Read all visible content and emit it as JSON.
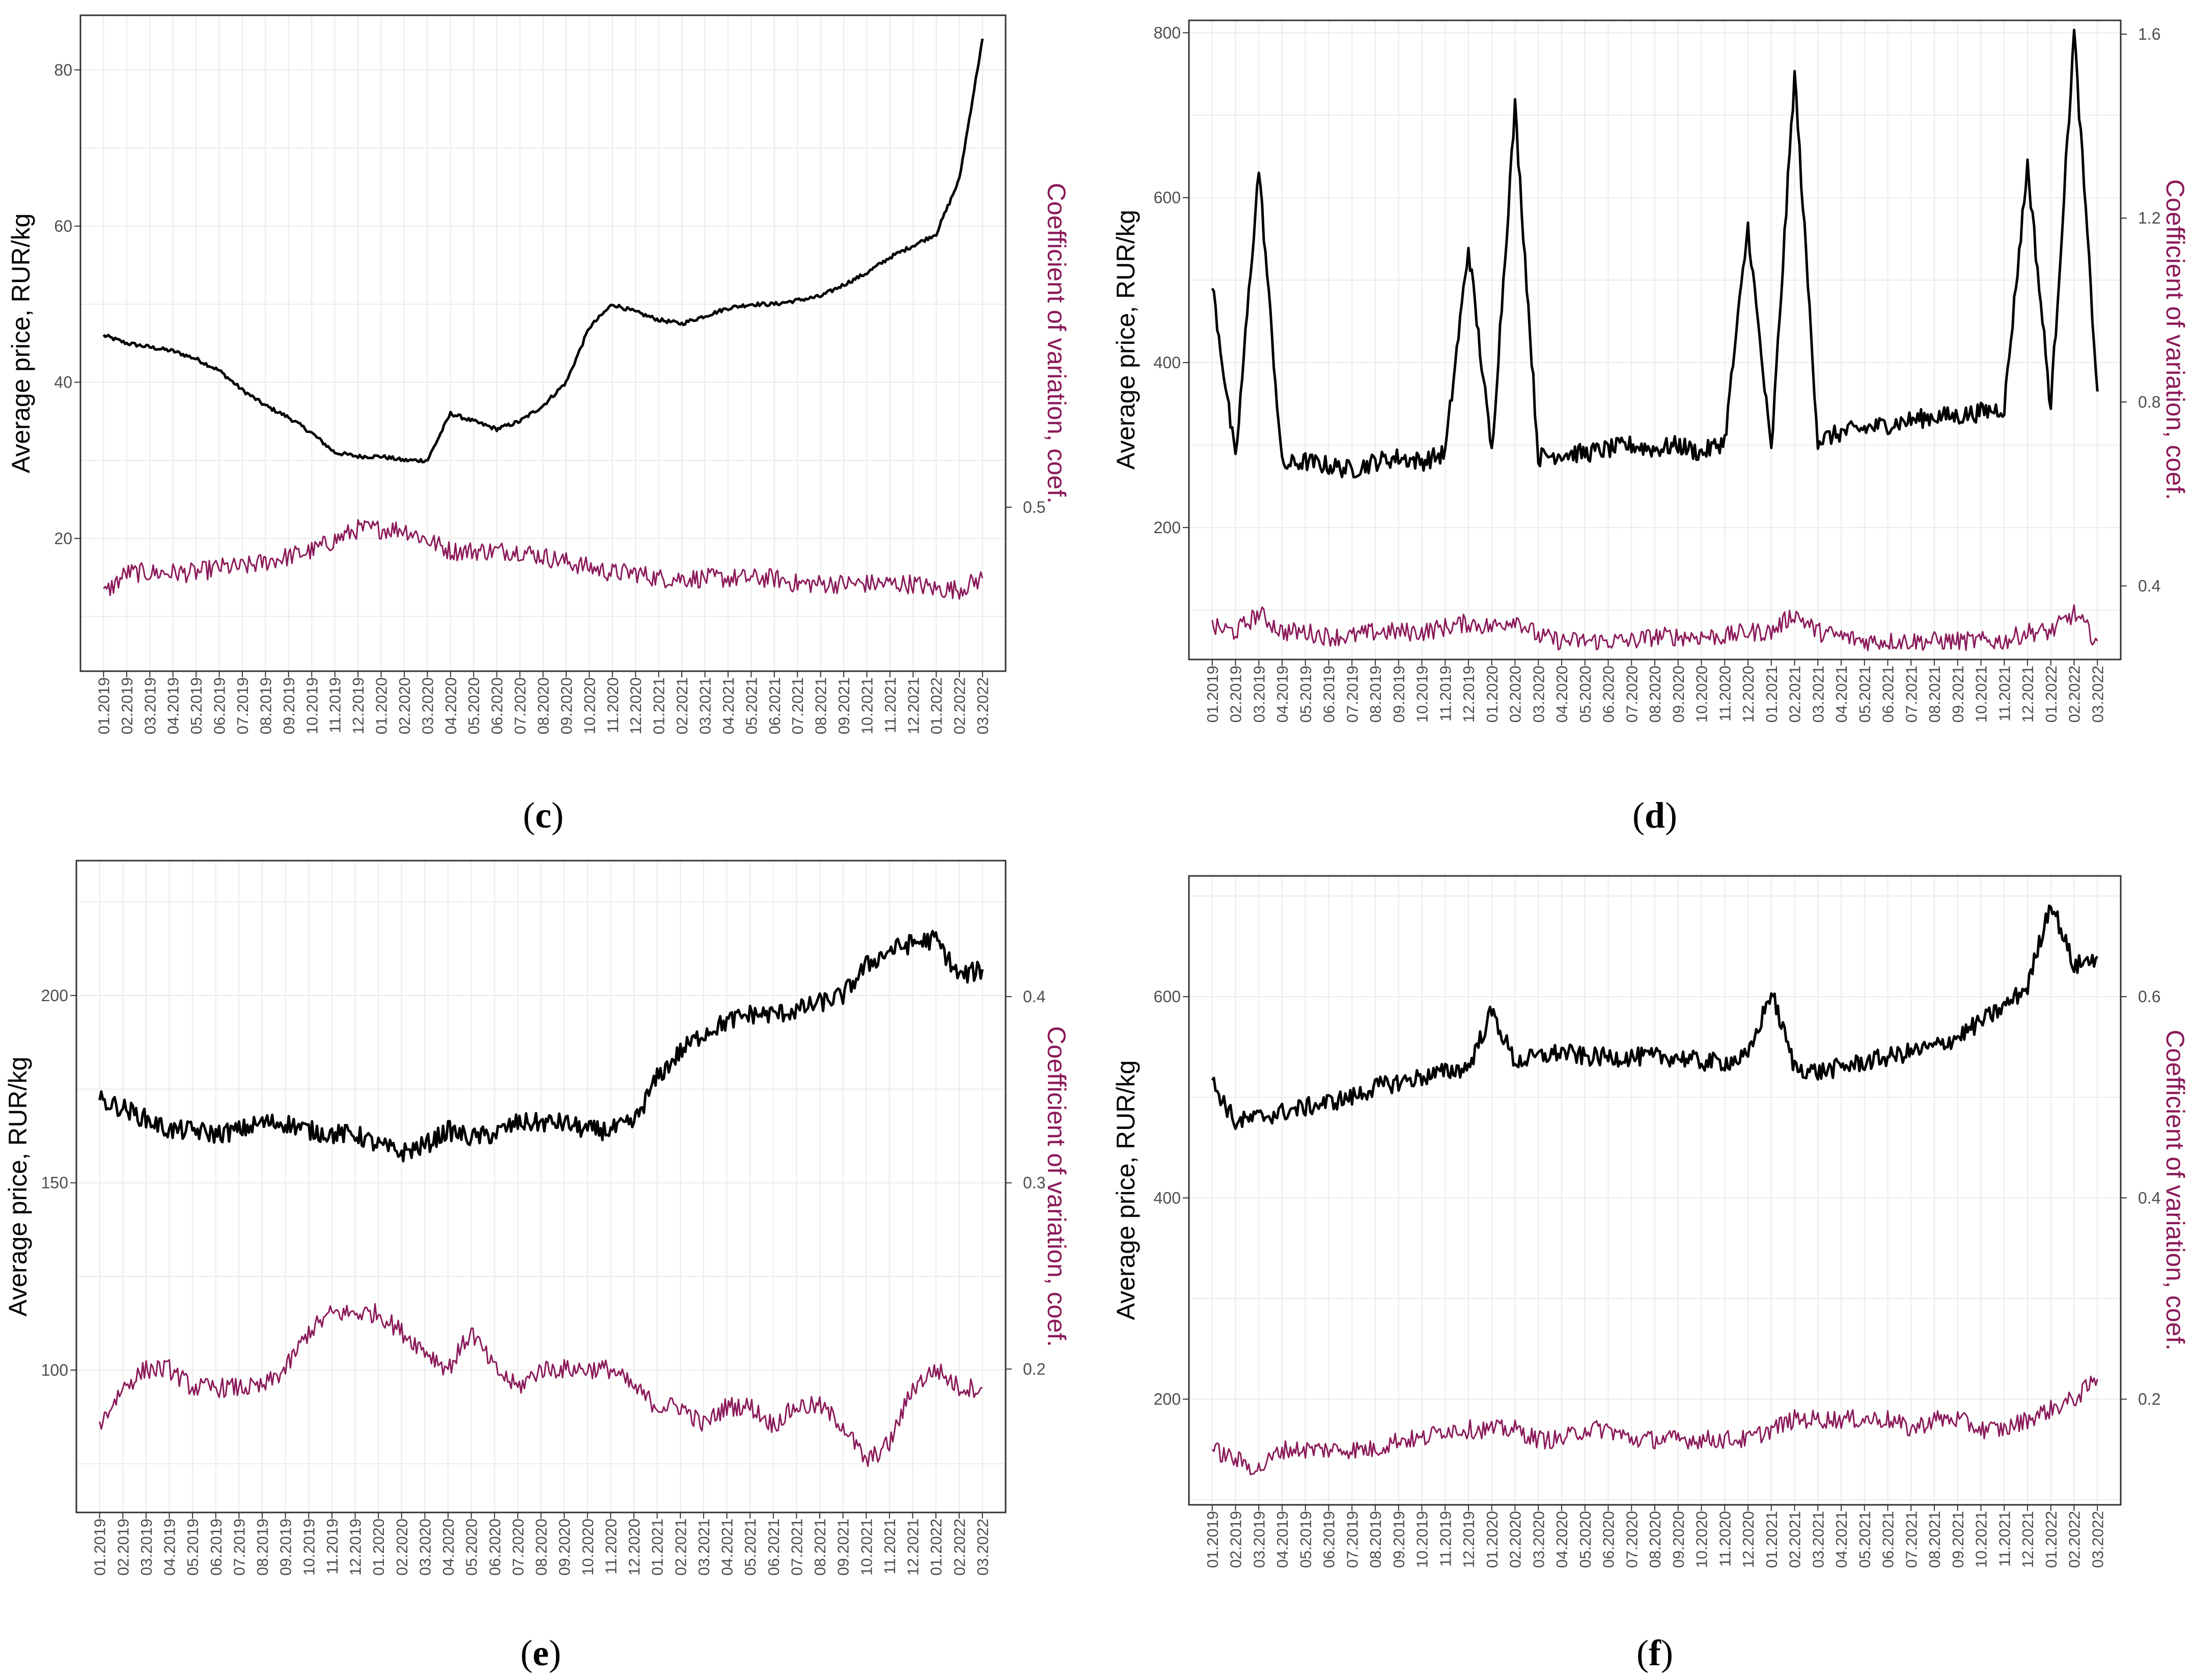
{
  "colors": {
    "price": "#000000",
    "cv": "#8b1a5a",
    "grid": "#ebebeb",
    "border": "#333333"
  },
  "chart_data": [
    {
      "type": "line",
      "panel": "c",
      "caption_open": "(",
      "caption_letter": "c",
      "caption_close": ")",
      "ylabel": "Average price, RUR/kg",
      "y2label": "Coefficient of variation, coef.",
      "ylim": [
        3,
        87
      ],
      "yticks": [
        20,
        40,
        60,
        80
      ],
      "y2lim": [
        0.2,
        1.4
      ],
      "y2ticks": [
        0.5
      ],
      "categories": [
        "01.2019",
        "02.2019",
        "03.2019",
        "04.2019",
        "05.2019",
        "06.2019",
        "07.2019",
        "08.2019",
        "09.2019",
        "10.2019",
        "11.2019",
        "12.2019",
        "01.2020",
        "02.2020",
        "03.2020",
        "04.2020",
        "05.2020",
        "06.2020",
        "07.2020",
        "08.2020",
        "09.2020",
        "10.2020",
        "11.2020",
        "12.2020",
        "01.2021",
        "02.2021",
        "03.2021",
        "04.2021",
        "05.2021",
        "06.2021",
        "07.2021",
        "08.2021",
        "09.2021",
        "10.2021",
        "11.2021",
        "12.2021",
        "01.2022",
        "02.2022",
        "03.2022"
      ],
      "series": [
        {
          "name": "Average price",
          "axis": "left",
          "values": [
            46,
            45,
            44.5,
            44,
            43,
            41.5,
            39,
            37,
            35.5,
            33.5,
            31,
            30.5,
            30.5,
            30,
            30,
            36,
            35,
            34,
            35,
            37,
            40,
            47,
            50,
            49,
            48,
            47.5,
            48.5,
            49.5,
            50,
            50,
            50.5,
            51,
            52.5,
            54,
            56,
            57.5,
            59,
            66,
            84
          ]
        },
        {
          "name": "Coefficient of variation",
          "axis": "right",
          "values": [
            0.34,
            0.38,
            0.38,
            0.38,
            0.38,
            0.39,
            0.39,
            0.4,
            0.41,
            0.42,
            0.44,
            0.46,
            0.46,
            0.46,
            0.44,
            0.42,
            0.42,
            0.42,
            0.42,
            0.41,
            0.4,
            0.39,
            0.38,
            0.38,
            0.37,
            0.37,
            0.37,
            0.37,
            0.37,
            0.37,
            0.36,
            0.36,
            0.36,
            0.36,
            0.36,
            0.36,
            0.35,
            0.35,
            0.37
          ]
        }
      ]
    },
    {
      "type": "line",
      "panel": "d",
      "caption_open": "(",
      "caption_letter": "d",
      "caption_close": ")",
      "ylabel": "Average price, RUR/kg",
      "y2label": "Coefficient of variation, coef.",
      "ylim": [
        40,
        815
      ],
      "yticks": [
        200,
        400,
        600,
        800
      ],
      "y2lim": [
        0.24,
        1.63
      ],
      "y2ticks": [
        0.4,
        0.8,
        1.2,
        1.6
      ],
      "categories": [
        "01.2019",
        "02.2019",
        "03.2019",
        "04.2019",
        "05.2019",
        "06.2019",
        "07.2019",
        "08.2019",
        "09.2019",
        "10.2019",
        "11.2019",
        "12.2019",
        "01.2020",
        "02.2020",
        "03.2020",
        "04.2020",
        "05.2020",
        "06.2020",
        "07.2020",
        "08.2020",
        "09.2020",
        "10.2020",
        "11.2020",
        "12.2020",
        "01.2021",
        "02.2021",
        "03.2021",
        "04.2021",
        "05.2021",
        "06.2021",
        "07.2021",
        "08.2021",
        "09.2021",
        "10.2021",
        "11.2021",
        "12.2021",
        "01.2022",
        "02.2022",
        "03.2022"
      ],
      "series": [
        {
          "name": "Average price",
          "axis": "left",
          "values": [
            495,
            280,
            635,
            275,
            280,
            275,
            270,
            280,
            285,
            280,
            290,
            540,
            290,
            710,
            285,
            290,
            290,
            295,
            300,
            295,
            300,
            290,
            305,
            565,
            290,
            750,
            305,
            315,
            320,
            325,
            330,
            335,
            335,
            340,
            345,
            640,
            345,
            800,
            365
          ]
        },
        {
          "name": "Coefficient of variation",
          "axis": "right",
          "values": [
            0.31,
            0.3,
            0.34,
            0.3,
            0.3,
            0.29,
            0.29,
            0.3,
            0.3,
            0.3,
            0.31,
            0.32,
            0.31,
            0.33,
            0.29,
            0.28,
            0.28,
            0.28,
            0.28,
            0.29,
            0.29,
            0.29,
            0.29,
            0.3,
            0.3,
            0.34,
            0.3,
            0.29,
            0.28,
            0.28,
            0.28,
            0.28,
            0.28,
            0.28,
            0.28,
            0.3,
            0.3,
            0.34,
            0.28
          ]
        }
      ]
    },
    {
      "type": "line",
      "panel": "e",
      "caption_open": "(",
      "caption_letter": "e",
      "caption_close": ")",
      "ylabel": "Average price, RUR/kg",
      "y2label": "Coefficient of variation, coef.",
      "ylim": [
        62,
        236
      ],
      "yticks": [
        100,
        150,
        200
      ],
      "y2lim": [
        0.123,
        0.473
      ],
      "y2ticks": [
        0.2,
        0.3,
        0.4
      ],
      "categories": [
        "01.2019",
        "02.2019",
        "03.2019",
        "04.2019",
        "05.2019",
        "06.2019",
        "07.2019",
        "08.2019",
        "09.2019",
        "10.2019",
        "11.2019",
        "12.2019",
        "01.2020",
        "02.2020",
        "03.2020",
        "04.2020",
        "05.2020",
        "06.2020",
        "07.2020",
        "08.2020",
        "09.2020",
        "10.2020",
        "11.2020",
        "12.2020",
        "01.2021",
        "02.2021",
        "03.2021",
        "04.2021",
        "05.2021",
        "06.2021",
        "07.2021",
        "08.2021",
        "09.2021",
        "10.2021",
        "11.2021",
        "12.2021",
        "01.2022",
        "02.2022",
        "03.2022"
      ],
      "series": [
        {
          "name": "Average price",
          "axis": "left",
          "values": [
            172,
            170,
            167,
            164,
            164,
            163,
            164,
            166,
            166,
            164,
            163,
            163,
            160,
            158,
            160,
            164,
            162,
            163,
            166,
            166,
            166,
            164,
            164,
            166,
            178,
            185,
            190,
            193,
            195,
            195,
            196,
            198,
            200,
            208,
            212,
            214,
            215,
            205,
            207
          ]
        },
        {
          "name": "Coefficient of variation",
          "axis": "right",
          "values": [
            0.17,
            0.19,
            0.2,
            0.2,
            0.19,
            0.19,
            0.19,
            0.19,
            0.2,
            0.22,
            0.23,
            0.23,
            0.23,
            0.22,
            0.21,
            0.2,
            0.22,
            0.2,
            0.19,
            0.2,
            0.2,
            0.2,
            0.2,
            0.19,
            0.18,
            0.18,
            0.17,
            0.18,
            0.18,
            0.17,
            0.18,
            0.18,
            0.17,
            0.15,
            0.16,
            0.19,
            0.2,
            0.19,
            0.19
          ]
        }
      ]
    },
    {
      "type": "line",
      "panel": "f",
      "caption_open": "(",
      "caption_letter": "f",
      "caption_close": ")",
      "ylabel": "Average price, RUR/kg",
      "y2label": "Coefficient of variation, coef.",
      "ylim": [
        95,
        720
      ],
      "yticks": [
        200,
        400,
        600
      ],
      "y2lim": [
        0.095,
        0.72
      ],
      "y2ticks": [
        0.2,
        0.4,
        0.6
      ],
      "categories": [
        "01.2019",
        "02.2019",
        "03.2019",
        "04.2019",
        "05.2019",
        "06.2019",
        "07.2019",
        "08.2019",
        "09.2019",
        "10.2019",
        "11.2019",
        "12.2019",
        "01.2020",
        "02.2020",
        "03.2020",
        "04.2020",
        "05.2020",
        "06.2020",
        "07.2020",
        "08.2020",
        "09.2020",
        "10.2020",
        "11.2020",
        "12.2020",
        "01.2021",
        "02.2021",
        "03.2021",
        "04.2021",
        "05.2021",
        "06.2021",
        "07.2021",
        "08.2021",
        "09.2021",
        "10.2021",
        "11.2021",
        "12.2021",
        "01.2022",
        "02.2022",
        "03.2022"
      ],
      "series": [
        {
          "name": "Average price",
          "axis": "left",
          "values": [
            515,
            475,
            480,
            485,
            490,
            495,
            500,
            510,
            515,
            520,
            525,
            530,
            585,
            535,
            540,
            545,
            540,
            540,
            540,
            540,
            540,
            535,
            535,
            540,
            605,
            530,
            525,
            530,
            535,
            540,
            545,
            550,
            560,
            575,
            590,
            610,
            695,
            630,
            640
          ]
        },
        {
          "name": "Coefficient of variation",
          "axis": "right",
          "values": [
            0.15,
            0.14,
            0.13,
            0.15,
            0.15,
            0.15,
            0.15,
            0.15,
            0.16,
            0.16,
            0.17,
            0.17,
            0.17,
            0.17,
            0.16,
            0.16,
            0.17,
            0.17,
            0.16,
            0.16,
            0.16,
            0.16,
            0.16,
            0.16,
            0.17,
            0.18,
            0.18,
            0.18,
            0.18,
            0.18,
            0.17,
            0.18,
            0.18,
            0.17,
            0.17,
            0.18,
            0.19,
            0.2,
            0.22
          ]
        }
      ]
    }
  ]
}
